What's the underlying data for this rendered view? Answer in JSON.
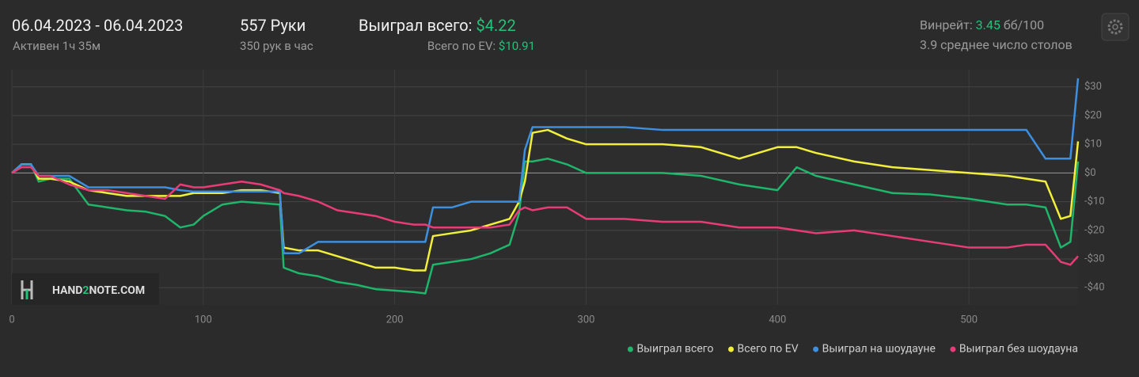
{
  "header": {
    "date_range": "06.04.2023 - 06.04.2023",
    "active": "Активен 1ч 35м",
    "hands": "557 Руки",
    "hands_per_hour": "350 рук в час",
    "won_label": "Выиграл всего:",
    "won_value": "$4.22",
    "ev_label": "Всего по EV:",
    "ev_value": "$10.91",
    "winrate_label": "Винрейт:",
    "winrate_value": "3.45",
    "winrate_unit": "бб/100",
    "tables": "3.9 среднее число столов"
  },
  "logo": {
    "left": "HAND",
    "mid": "2",
    "right": "NOTE.COM"
  },
  "chart_data": {
    "type": "line",
    "grid": true,
    "legend": "bottom-right",
    "x": [
      0,
      5,
      10,
      14,
      20,
      30,
      40,
      50,
      60,
      70,
      80,
      88,
      95,
      100,
      110,
      120,
      130,
      140,
      142,
      150,
      160,
      170,
      180,
      190,
      200,
      210,
      216,
      220,
      230,
      240,
      250,
      260,
      265,
      268,
      272,
      280,
      290,
      300,
      320,
      340,
      360,
      380,
      400,
      410,
      420,
      440,
      460,
      480,
      500,
      520,
      530,
      540,
      548,
      553,
      557
    ],
    "xlim": [
      0,
      557
    ],
    "xticks": [
      0,
      100,
      200,
      300,
      400,
      500
    ],
    "ylim": [
      -46,
      36
    ],
    "yticks": [
      {
        "value": -40,
        "label": "-$40"
      },
      {
        "value": -30,
        "label": "-$30"
      },
      {
        "value": -20,
        "label": "-$20"
      },
      {
        "value": -10,
        "label": "-$10"
      },
      {
        "value": 0,
        "label": "$0"
      },
      {
        "value": 10,
        "label": "$10"
      },
      {
        "value": 20,
        "label": "$20"
      },
      {
        "value": 30,
        "label": "$30"
      }
    ],
    "series": [
      {
        "name": "Выиграл всего",
        "color": "#1fb56b",
        "values": [
          0,
          3,
          3,
          -3,
          -2,
          -2,
          -11,
          -12,
          -13,
          -13.5,
          -15,
          -19,
          -18,
          -15,
          -11,
          -10,
          -10.5,
          -11,
          -33,
          -35,
          -36,
          -38,
          -39,
          -40.5,
          -41,
          -41.5,
          -42,
          -32,
          -31,
          -30,
          -28,
          -25,
          -14,
          4,
          4,
          5,
          3,
          0,
          0,
          0,
          -1,
          -4,
          -6,
          2,
          -1,
          -4,
          -7,
          -7.5,
          -9,
          -11,
          -11,
          -12,
          -26,
          -24,
          4
        ]
      },
      {
        "name": "Всего по EV",
        "color": "#f2ef3c",
        "values": [
          0,
          3,
          3,
          -2,
          -2,
          -3,
          -6,
          -7,
          -8,
          -8,
          -8,
          -8,
          -7,
          -7,
          -7,
          -6,
          -6,
          -7,
          -26,
          -27,
          -27,
          -29,
          -31,
          -33,
          -33,
          -34,
          -34,
          -22,
          -21,
          -20,
          -18,
          -16,
          -10,
          -3,
          14,
          15,
          12,
          10,
          10,
          10,
          9,
          5,
          9,
          9,
          7,
          4,
          2,
          1,
          0,
          -1,
          -2,
          -3,
          -16,
          -15,
          11
        ]
      },
      {
        "name": "Выиграл на шоудауне",
        "color": "#3d8fe0",
        "values": [
          0,
          3,
          3,
          -1,
          -1,
          -1,
          -5,
          -5,
          -5,
          -5,
          -5,
          -6,
          -6.5,
          -6.5,
          -6.5,
          -6.5,
          -6.5,
          -6.5,
          -28,
          -28,
          -24,
          -24,
          -24,
          -24,
          -24,
          -24,
          -24,
          -12,
          -12,
          -10,
          -10,
          -10,
          -10,
          8,
          16,
          16,
          16,
          16,
          16,
          15,
          15,
          15,
          15,
          15,
          15,
          15,
          15,
          15,
          15,
          15,
          15,
          5,
          5,
          5,
          33
        ]
      },
      {
        "name": "Выиграл без шоудауна",
        "color": "#e83c78",
        "values": [
          0,
          2,
          2,
          -1,
          -1,
          -4,
          -6,
          -6,
          -7,
          -8,
          -9,
          -4,
          -5,
          -5,
          -4,
          -3,
          -4,
          -6,
          -7,
          -8,
          -10,
          -13,
          -14,
          -15,
          -17,
          -18,
          -18,
          -19,
          -19,
          -19,
          -19,
          -18,
          -13,
          -12,
          -13,
          -12,
          -12,
          -16,
          -16,
          -17,
          -17,
          -19,
          -19,
          -20,
          -21,
          -20,
          -22,
          -24,
          -26,
          -26,
          -25,
          -25,
          -31,
          -32,
          -29
        ]
      }
    ]
  }
}
